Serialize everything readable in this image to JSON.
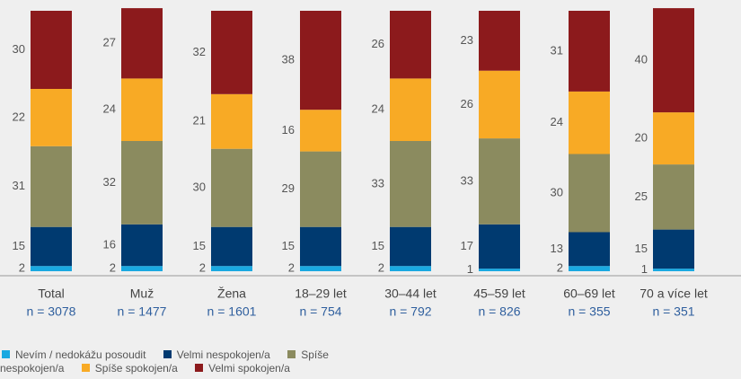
{
  "chart_data": {
    "type": "stacked_bar",
    "categories": [
      "Total",
      "Muž",
      "Žena",
      "18–29 let",
      "30–44 let",
      "45–59 let",
      "60–69 let",
      "70 a více let"
    ],
    "n_labels": [
      "n = 3078",
      "n = 1477",
      "n = 1601",
      "n = 754",
      "n = 792",
      "n = 826",
      "n = 355",
      "n = 351"
    ],
    "ylim": [
      0,
      100
    ],
    "series": [
      {
        "name": "Nevím / nedokážu posoudit",
        "color": "#1aa9e1",
        "values": [
          2,
          2,
          2,
          2,
          2,
          1,
          2,
          1
        ]
      },
      {
        "name": "Velmi nespokojen/a",
        "color": "#003a70",
        "values": [
          15,
          16,
          15,
          15,
          15,
          17,
          13,
          15
        ]
      },
      {
        "name": "Spíše nespokojen/a",
        "color": "#8b8b5f",
        "values": [
          31,
          32,
          30,
          29,
          33,
          33,
          30,
          25
        ]
      },
      {
        "name": "Spíše spokojen/a",
        "color": "#f8aa25",
        "values": [
          22,
          24,
          21,
          16,
          24,
          26,
          24,
          20
        ]
      },
      {
        "name": "Velmi spokojen/a",
        "color": "#8c1a1c",
        "values": [
          30,
          27,
          32,
          38,
          26,
          23,
          31,
          40
        ]
      }
    ]
  }
}
